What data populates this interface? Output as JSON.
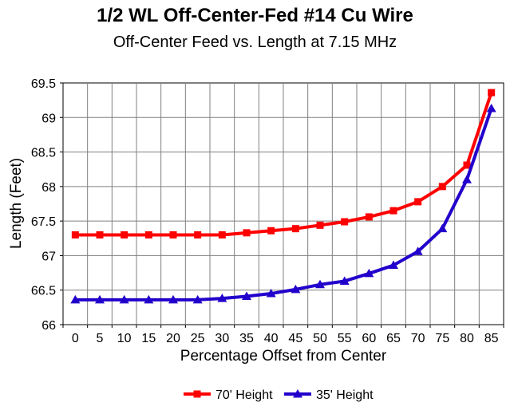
{
  "chart_data": {
    "type": "line",
    "title": "1/2 WL Off-Center-Fed #14 Cu Wire",
    "subtitle": "Off-Center Feed vs. Length at 7.15 MHz",
    "xlabel": "Percentage Offset from Center",
    "ylabel": "Length (Feet)",
    "ylim": [
      66,
      69.5
    ],
    "y_ticks": [
      "66",
      "66.5",
      "67",
      "67.5",
      "68",
      "68.5",
      "69",
      "69.5"
    ],
    "y_tick_values": [
      66,
      66.5,
      67,
      67.5,
      68,
      68.5,
      69,
      69.5
    ],
    "categories": [
      "0",
      "5",
      "10",
      "15",
      "20",
      "25",
      "30",
      "35",
      "40",
      "45",
      "50",
      "55",
      "60",
      "65",
      "70",
      "75",
      "80",
      "85"
    ],
    "grid": true,
    "legend": "bottom",
    "series": [
      {
        "name": "70' Height",
        "color": "#ff0000",
        "marker": "square",
        "values": [
          67.3,
          67.3,
          67.3,
          67.3,
          67.3,
          67.3,
          67.3,
          67.33,
          67.36,
          67.39,
          67.44,
          67.49,
          67.56,
          67.65,
          67.78,
          68.0,
          68.31,
          69.36
        ]
      },
      {
        "name": "35' Height",
        "color": "#2200cc",
        "marker": "triangle",
        "values": [
          66.36,
          66.36,
          66.36,
          66.36,
          66.36,
          66.36,
          66.38,
          66.41,
          66.45,
          66.51,
          66.58,
          66.63,
          66.74,
          66.86,
          67.06,
          67.39,
          68.1,
          69.13
        ]
      }
    ]
  }
}
